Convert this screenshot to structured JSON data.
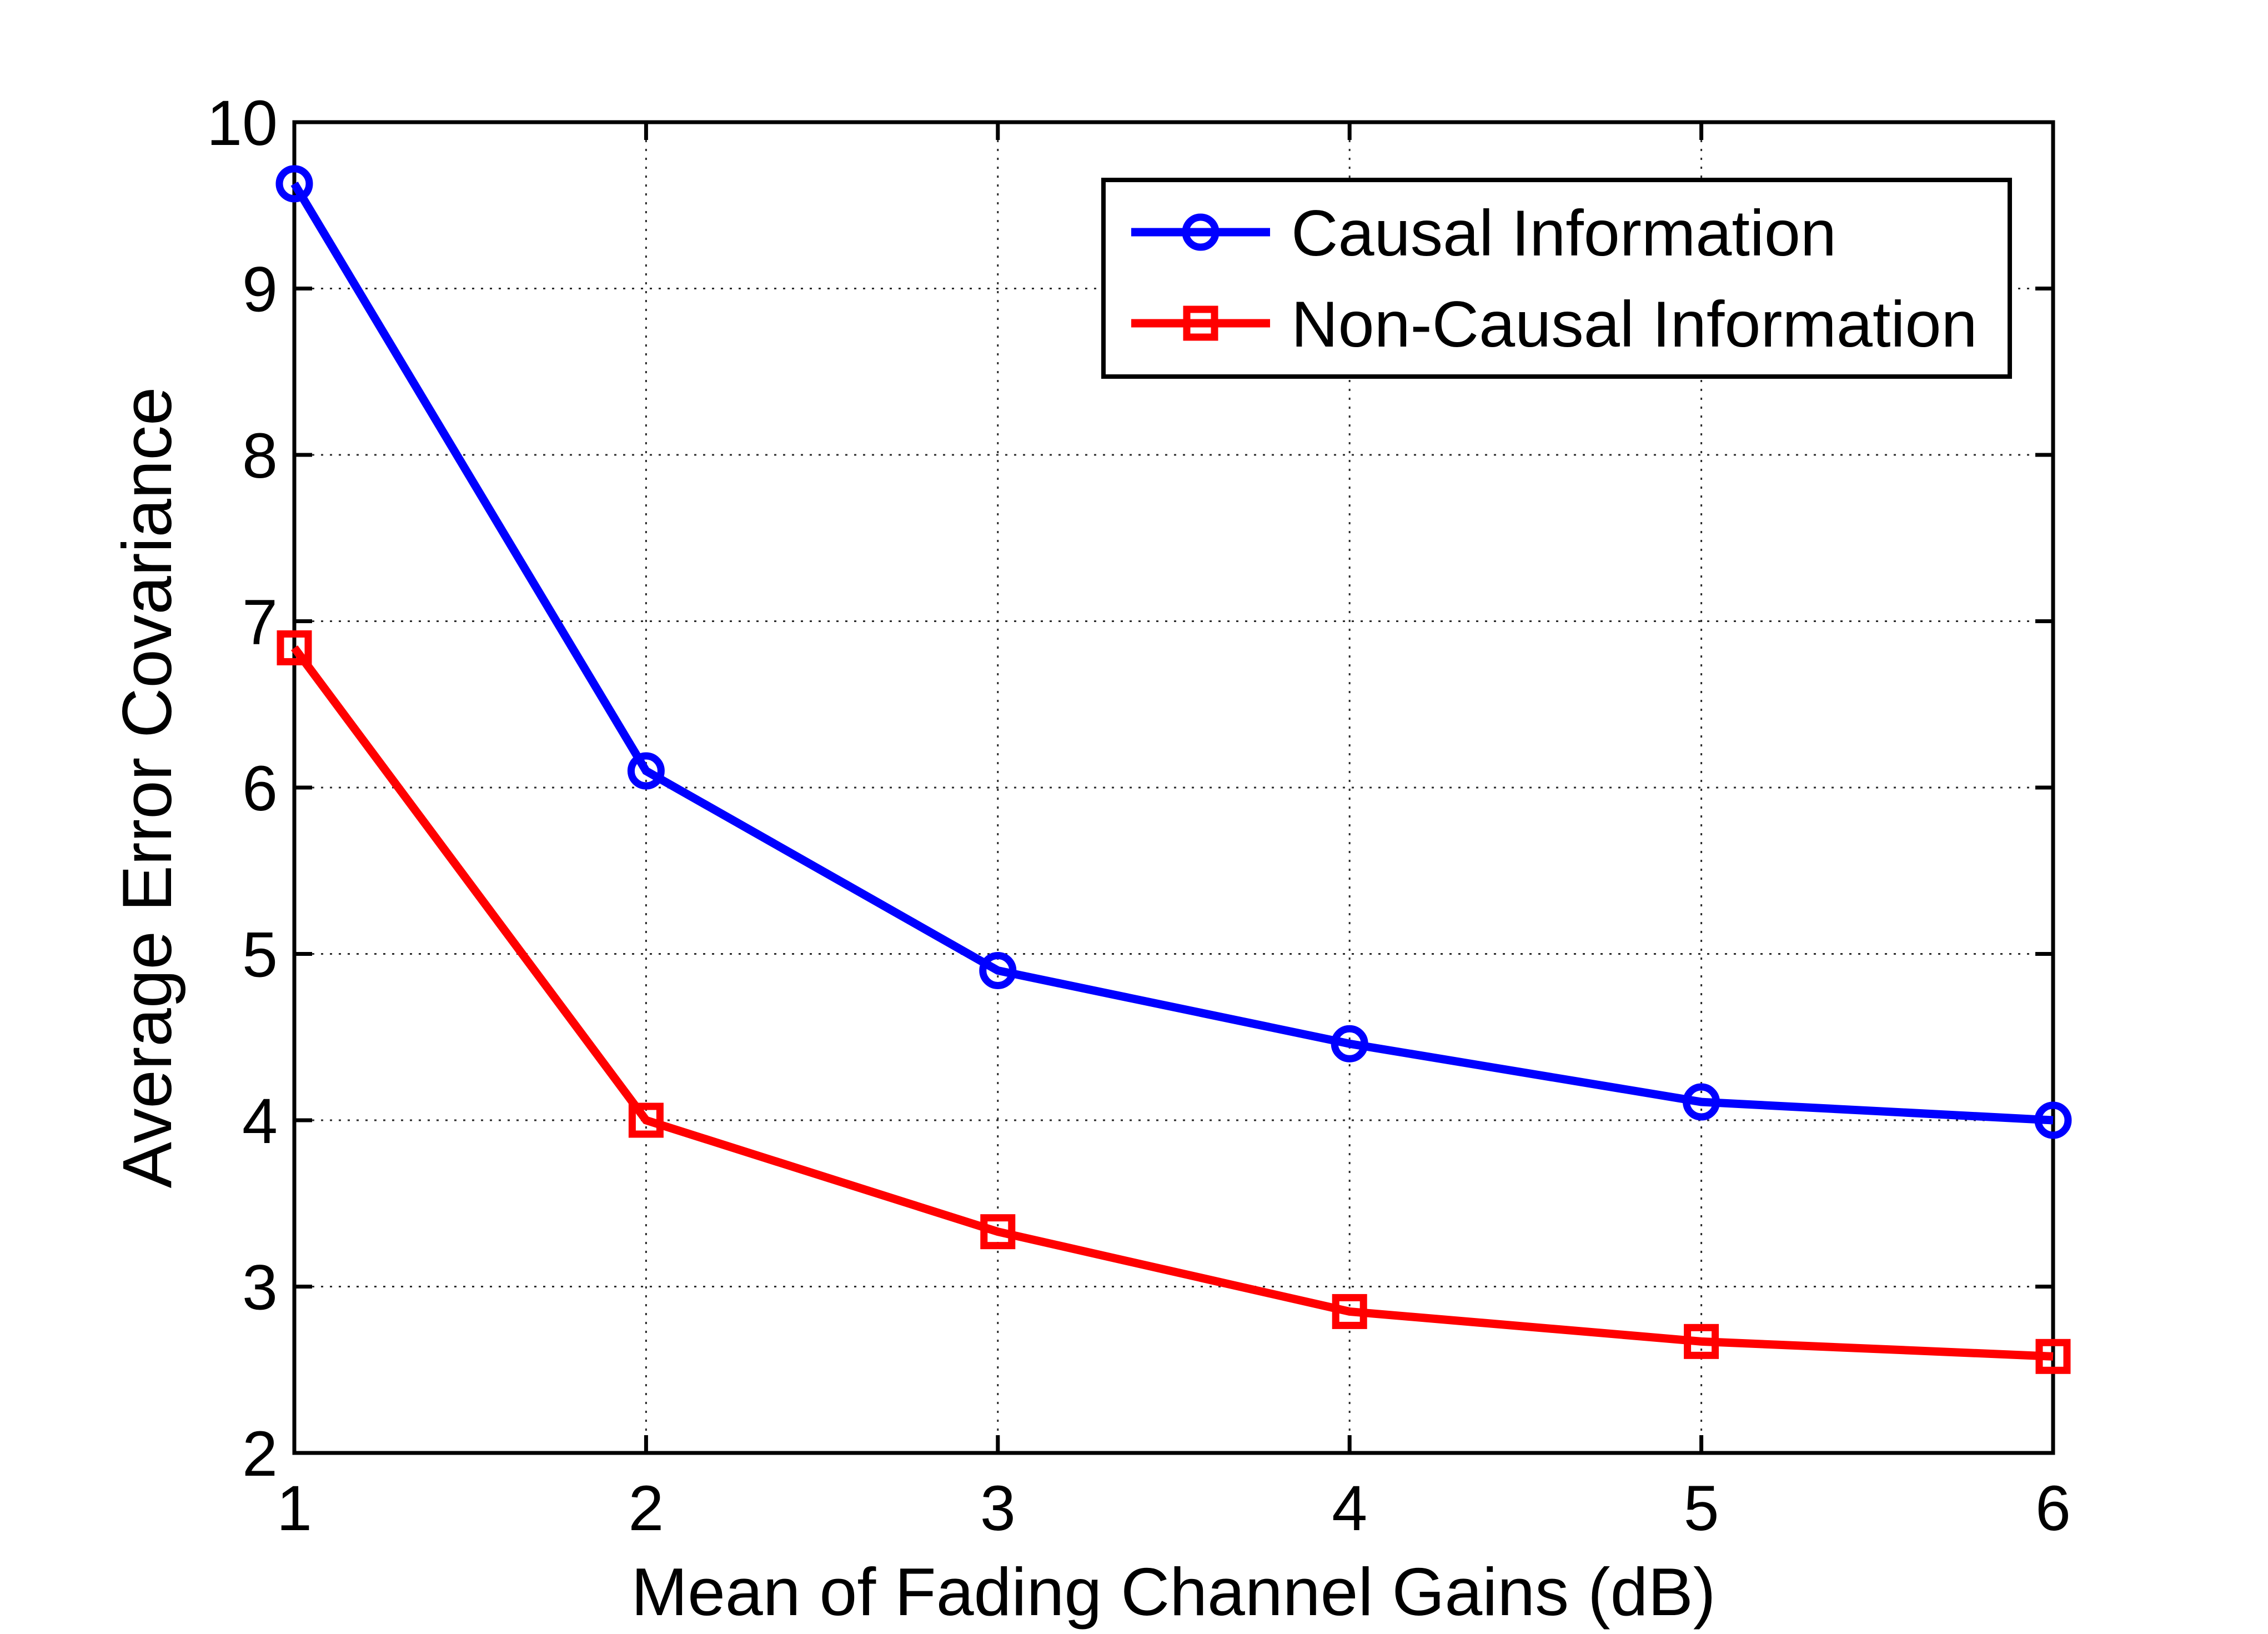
{
  "chart_data": {
    "type": "line",
    "title": "",
    "xlabel": "Mean of Fading Channel Gains (dB)",
    "ylabel": "Average Error Covariance",
    "x": [
      1,
      2,
      3,
      4,
      5,
      6
    ],
    "series": [
      {
        "name": "Causal Information",
        "color": "#0000ff",
        "marker": "circle",
        "values": [
          9.63,
          6.1,
          4.9,
          4.46,
          4.11,
          4.0
        ]
      },
      {
        "name": "Non-Causal Information",
        "color": "#ff0000",
        "marker": "square",
        "values": [
          6.84,
          4.0,
          3.33,
          2.85,
          2.67,
          2.58
        ]
      }
    ],
    "xlim": [
      1,
      6
    ],
    "ylim": [
      2,
      10
    ],
    "xticks": [
      "1",
      "2",
      "3",
      "4",
      "5",
      "6"
    ],
    "yticks": [
      "2",
      "3",
      "4",
      "5",
      "6",
      "7",
      "8",
      "9",
      "10"
    ],
    "grid": true,
    "grid_style": "dotted",
    "legend": {
      "position": "upper-right-inside",
      "entries": [
        "Causal Information",
        "Non-Causal Information"
      ]
    },
    "axis_color": "#000000",
    "background": "#ffffff"
  }
}
